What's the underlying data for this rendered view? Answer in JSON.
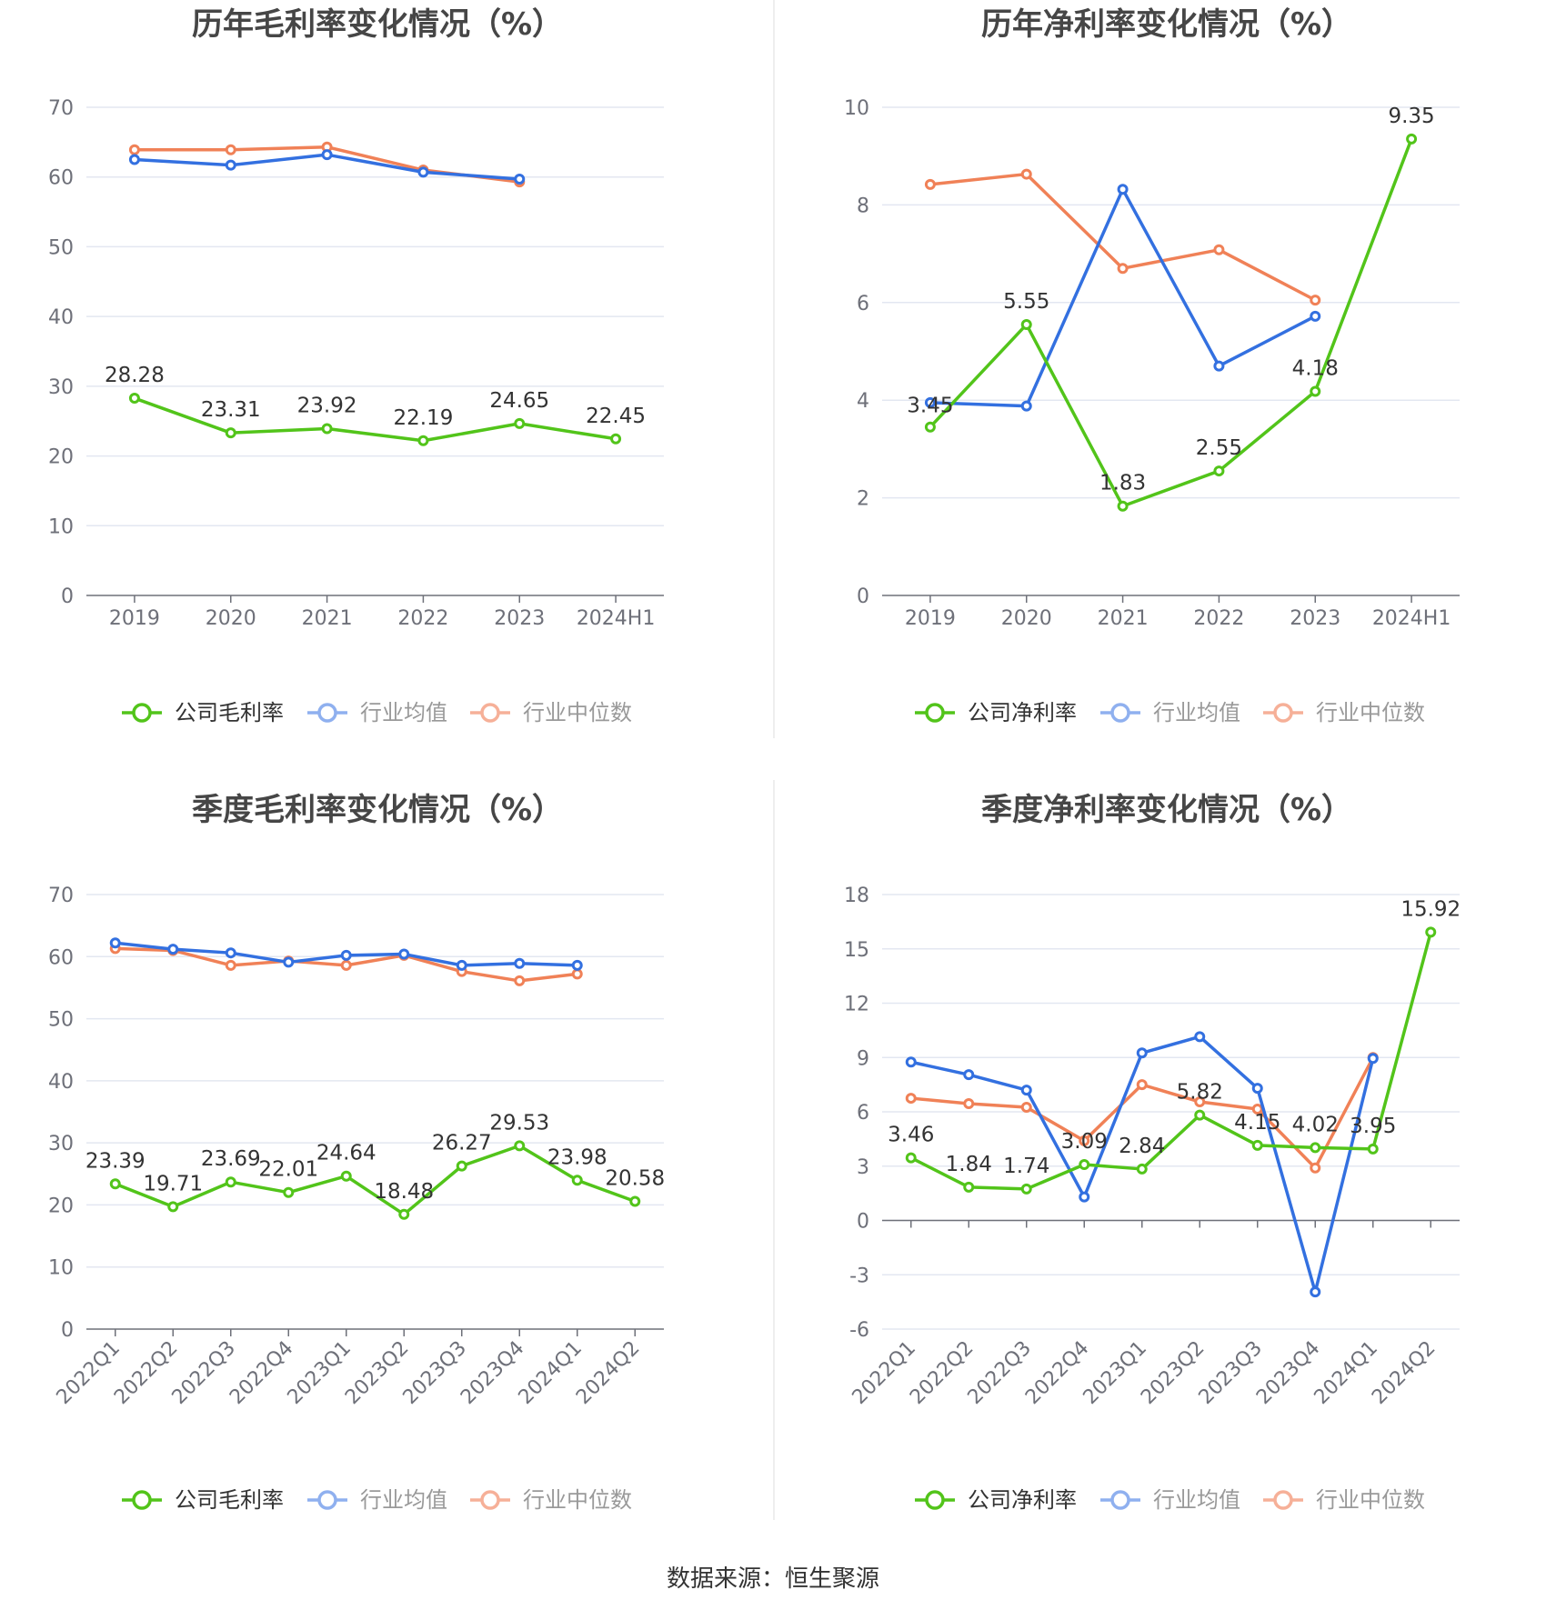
{
  "source": "数据来源：恒生聚源",
  "colors": {
    "company": "#52c41a",
    "avg": "#3370e0",
    "median": "#f08157",
    "legend_avg": "#8fb0ef",
    "legend_median": "#f6b098",
    "grid": "#e3e7f1",
    "axis": "#6e7079",
    "tick_text": "#6e7079",
    "label_text": "#333333",
    "title_text": "#464646"
  },
  "chart_data": [
    {
      "type": "line",
      "title": "历年毛利率变化情况（%）",
      "categories": [
        "2019",
        "2020",
        "2021",
        "2022",
        "2023",
        "2024H1"
      ],
      "ylim": [
        0,
        70
      ],
      "yticks": [
        "0",
        "10",
        "20",
        "30",
        "40",
        "50",
        "60",
        "70"
      ],
      "ytick_values": [
        0,
        10,
        20,
        30,
        40,
        50,
        60,
        70
      ],
      "rotate_x": false,
      "grid": true,
      "legend_position": "bottom",
      "series": [
        {
          "name": "公司毛利率",
          "key": "company",
          "values": [
            28.28,
            23.31,
            23.92,
            22.19,
            24.65,
            22.45
          ],
          "labels": [
            "28.28",
            "23.31",
            "23.92",
            "22.19",
            "24.65",
            "22.45"
          ]
        },
        {
          "name": "行业均值",
          "key": "avg",
          "values": [
            62.5,
            61.7,
            63.2,
            60.7,
            59.7,
            null
          ]
        },
        {
          "name": "行业中位数",
          "key": "median",
          "values": [
            63.9,
            63.9,
            64.3,
            61.0,
            59.3,
            null
          ]
        }
      ]
    },
    {
      "type": "line",
      "title": "历年净利率变化情况（%）",
      "categories": [
        "2019",
        "2020",
        "2021",
        "2022",
        "2023",
        "2024H1"
      ],
      "ylim": [
        0,
        10
      ],
      "yticks": [
        "0",
        "2",
        "4",
        "6",
        "8",
        "10"
      ],
      "ytick_values": [
        0,
        2,
        4,
        6,
        8,
        10
      ],
      "rotate_x": false,
      "grid": true,
      "legend_position": "bottom",
      "series": [
        {
          "name": "公司净利率",
          "key": "company",
          "values": [
            3.45,
            5.55,
            1.83,
            2.55,
            4.18,
            9.35
          ],
          "labels": [
            "3.45",
            "5.55",
            "1.83",
            "2.55",
            "4.18",
            "9.35"
          ]
        },
        {
          "name": "行业均值",
          "key": "avg",
          "values": [
            3.95,
            3.88,
            8.32,
            4.7,
            5.72,
            null
          ]
        },
        {
          "name": "行业中位数",
          "key": "median",
          "values": [
            8.42,
            8.63,
            6.7,
            7.08,
            6.05,
            null
          ]
        }
      ]
    },
    {
      "type": "line",
      "title": "季度毛利率变化情况（%）",
      "categories": [
        "2022Q1",
        "2022Q2",
        "2022Q3",
        "2022Q4",
        "2023Q1",
        "2023Q2",
        "2023Q3",
        "2023Q4",
        "2024Q1",
        "2024Q2"
      ],
      "ylim": [
        0,
        70
      ],
      "yticks": [
        "0",
        "10",
        "20",
        "30",
        "40",
        "50",
        "60",
        "70"
      ],
      "ytick_values": [
        0,
        10,
        20,
        30,
        40,
        50,
        60,
        70
      ],
      "rotate_x": true,
      "grid": true,
      "legend_position": "bottom",
      "series": [
        {
          "name": "公司毛利率",
          "key": "company",
          "values": [
            23.39,
            19.71,
            23.69,
            22.01,
            24.64,
            18.48,
            26.27,
            29.53,
            23.98,
            20.58
          ],
          "labels": [
            "23.39",
            "19.71",
            "23.69",
            "22.01",
            "24.64",
            "18.48",
            "26.27",
            "29.53",
            "23.98",
            "20.58"
          ]
        },
        {
          "name": "行业均值",
          "key": "avg",
          "values": [
            62.2,
            61.2,
            60.6,
            59.1,
            60.2,
            60.4,
            58.6,
            58.9,
            58.6,
            null
          ]
        },
        {
          "name": "行业中位数",
          "key": "median",
          "values": [
            61.3,
            61.0,
            58.6,
            59.3,
            58.6,
            60.2,
            57.6,
            56.1,
            57.2,
            null
          ]
        }
      ]
    },
    {
      "type": "line",
      "title": "季度净利率变化情况（%）",
      "categories": [
        "2022Q1",
        "2022Q2",
        "2022Q3",
        "2022Q4",
        "2023Q1",
        "2023Q2",
        "2023Q3",
        "2023Q4",
        "2024Q1",
        "2024Q2"
      ],
      "ylim": [
        -6,
        18
      ],
      "yticks": [
        "-6",
        "-3",
        "0",
        "3",
        "6",
        "9",
        "12",
        "15",
        "18"
      ],
      "ytick_values": [
        -6,
        -3,
        0,
        3,
        6,
        9,
        12,
        15,
        18
      ],
      "rotate_x": true,
      "grid": true,
      "legend_position": "bottom",
      "series": [
        {
          "name": "公司净利率",
          "key": "company",
          "values": [
            3.46,
            1.84,
            1.74,
            3.09,
            2.84,
            5.82,
            4.15,
            4.02,
            3.95,
            15.92
          ],
          "labels": [
            "3.46",
            "1.84",
            "1.74",
            "3.09",
            "2.84",
            "5.82",
            "4.15",
            "4.02",
            "3.95",
            "15.92"
          ]
        },
        {
          "name": "行业均值",
          "key": "avg",
          "values": [
            8.75,
            8.05,
            7.2,
            1.3,
            9.25,
            10.15,
            7.3,
            -3.95,
            8.95,
            null
          ]
        },
        {
          "name": "行业中位数",
          "key": "median",
          "values": [
            6.75,
            6.45,
            6.25,
            4.4,
            7.5,
            6.55,
            6.15,
            2.9,
            9.0,
            null
          ]
        }
      ]
    }
  ]
}
